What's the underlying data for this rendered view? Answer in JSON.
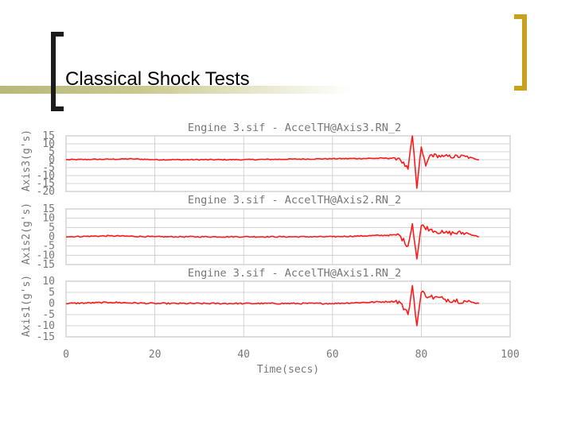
{
  "slide": {
    "title": "Classical Shock Tests"
  },
  "colors": {
    "signal": "#ff1a1a",
    "accent_bracket": "#c8a21c",
    "axis_text": "#777777"
  },
  "chart_data": [
    {
      "type": "line",
      "title": "Engine 3.sif - AccelTH@Axis3.RN_2",
      "ylabel": "Axis3(g's)",
      "xlabel": "",
      "ylim": [
        -20,
        15
      ],
      "yticks": [
        15,
        10,
        5,
        0,
        -5,
        -10,
        -15,
        -20
      ],
      "xlim": [
        0,
        100
      ],
      "grid": true,
      "series": [
        {
          "values": [
            [
              0,
              0
            ],
            [
              10,
              0.3
            ],
            [
              15,
              0.5
            ],
            [
              20,
              0
            ],
            [
              40,
              0
            ],
            [
              60,
              0.6
            ],
            [
              75,
              1
            ],
            [
              77,
              -6
            ],
            [
              78,
              15
            ],
            [
              79,
              -18
            ],
            [
              80,
              8
            ],
            [
              81,
              -4
            ],
            [
              82,
              3
            ],
            [
              85,
              2
            ],
            [
              90,
              2
            ],
            [
              93,
              0
            ]
          ]
        }
      ]
    },
    {
      "type": "line",
      "title": "Engine 3.sif - AccelTH@Axis2.RN_2",
      "ylabel": "Axis2(g's)",
      "xlabel": "",
      "ylim": [
        -15,
        15
      ],
      "yticks": [
        15,
        10,
        5,
        0,
        -5,
        -10,
        -15
      ],
      "xlim": [
        0,
        100
      ],
      "grid": true,
      "series": [
        {
          "values": [
            [
              0,
              0
            ],
            [
              10,
              0.5
            ],
            [
              20,
              0
            ],
            [
              40,
              0
            ],
            [
              60,
              0
            ],
            [
              75,
              1
            ],
            [
              77,
              -5
            ],
            [
              78,
              7
            ],
            [
              79,
              -12
            ],
            [
              80,
              6
            ],
            [
              82,
              4
            ],
            [
              85,
              2
            ],
            [
              90,
              2
            ],
            [
              93,
              0
            ]
          ]
        }
      ]
    },
    {
      "type": "line",
      "title": "Engine 3.sif - AccelTH@Axis1.RN_2",
      "ylabel": "Axis1(g's)",
      "xlabel": "Time(secs)",
      "ylim": [
        -15,
        10
      ],
      "yticks": [
        10,
        5,
        0,
        -5,
        -10,
        -15
      ],
      "xlim": [
        0,
        100
      ],
      "xticks": [
        0,
        20,
        40,
        60,
        80,
        100
      ],
      "grid": true,
      "series": [
        {
          "values": [
            [
              0,
              0
            ],
            [
              10,
              0.5
            ],
            [
              20,
              0
            ],
            [
              40,
              0
            ],
            [
              60,
              0
            ],
            [
              75,
              1
            ],
            [
              77,
              -5
            ],
            [
              78,
              8
            ],
            [
              79,
              -10
            ],
            [
              80,
              5
            ],
            [
              82,
              3
            ],
            [
              85,
              2
            ],
            [
              90,
              1
            ],
            [
              93,
              0
            ]
          ]
        }
      ]
    }
  ]
}
